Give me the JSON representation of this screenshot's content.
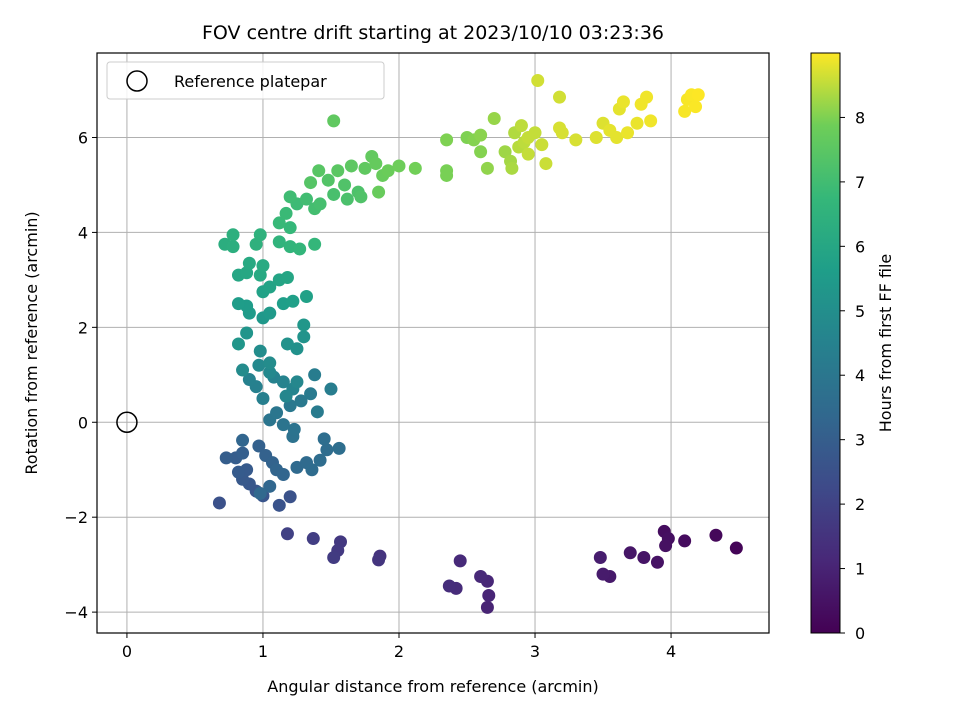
{
  "chart_data": {
    "type": "scatter",
    "title": "FOV centre drift starting at 2023/10/10 03:23:36",
    "xlabel": "Angular distance from reference (arcmin)",
    "ylabel": "Rotation from reference (arcmin)",
    "xlim": [
      -0.22,
      4.72
    ],
    "ylim": [
      -4.44,
      7.78
    ],
    "xticks": [
      "0",
      "1",
      "2",
      "3",
      "4"
    ],
    "xtick_values": [
      0,
      1,
      2,
      3,
      4
    ],
    "yticks": [
      "−4",
      "−2",
      "0",
      "2",
      "4",
      "6"
    ],
    "ytick_values": [
      -4,
      -2,
      0,
      2,
      4,
      6
    ],
    "grid": true,
    "legend": {
      "position": "top-left",
      "entries": [
        "Reference platepar"
      ]
    },
    "reference_point": {
      "x": 0,
      "y": 0
    },
    "colorbar": {
      "label": "Hours from first FF file",
      "colormap": "viridis",
      "range": [
        0,
        9.0
      ],
      "ticks": [
        "0",
        "1",
        "2",
        "3",
        "4",
        "5",
        "6",
        "7",
        "8"
      ],
      "tick_values": [
        0,
        1,
        2,
        3,
        4,
        5,
        6,
        7,
        8
      ]
    },
    "points": [
      {
        "x": 4.48,
        "y": -2.65,
        "h": 0.1
      },
      {
        "x": 4.33,
        "y": -2.38,
        "h": 0.2
      },
      {
        "x": 4.1,
        "y": -2.5,
        "h": 0.3
      },
      {
        "x": 3.95,
        "y": -2.3,
        "h": 0.35
      },
      {
        "x": 3.98,
        "y": -2.45,
        "h": 0.4
      },
      {
        "x": 3.96,
        "y": -2.6,
        "h": 0.45
      },
      {
        "x": 3.9,
        "y": -2.95,
        "h": 0.5
      },
      {
        "x": 3.8,
        "y": -2.85,
        "h": 0.55
      },
      {
        "x": 3.7,
        "y": -2.75,
        "h": 0.6
      },
      {
        "x": 3.55,
        "y": -3.25,
        "h": 0.7
      },
      {
        "x": 3.5,
        "y": -3.2,
        "h": 0.75
      },
      {
        "x": 3.48,
        "y": -2.85,
        "h": 0.8
      },
      {
        "x": 2.65,
        "y": -3.9,
        "h": 1.0
      },
      {
        "x": 2.66,
        "y": -3.65,
        "h": 1.05
      },
      {
        "x": 2.65,
        "y": -3.35,
        "h": 1.1
      },
      {
        "x": 2.6,
        "y": -3.25,
        "h": 1.15
      },
      {
        "x": 2.45,
        "y": -2.92,
        "h": 1.2
      },
      {
        "x": 2.42,
        "y": -3.5,
        "h": 1.25
      },
      {
        "x": 2.37,
        "y": -3.45,
        "h": 1.3
      },
      {
        "x": 1.86,
        "y": -2.82,
        "h": 1.5
      },
      {
        "x": 1.85,
        "y": -2.9,
        "h": 1.55
      },
      {
        "x": 1.57,
        "y": -2.52,
        "h": 1.65
      },
      {
        "x": 1.55,
        "y": -2.7,
        "h": 1.7
      },
      {
        "x": 1.52,
        "y": -2.85,
        "h": 1.75
      },
      {
        "x": 1.37,
        "y": -2.45,
        "h": 1.85
      },
      {
        "x": 1.18,
        "y": -2.35,
        "h": 1.95
      },
      {
        "x": 0.68,
        "y": -1.7,
        "h": 2.5
      },
      {
        "x": 1.2,
        "y": -1.57,
        "h": 2.55
      },
      {
        "x": 1.12,
        "y": -1.75,
        "h": 2.6
      },
      {
        "x": 1.0,
        "y": -1.55,
        "h": 2.65
      },
      {
        "x": 0.95,
        "y": -1.45,
        "h": 2.7
      },
      {
        "x": 0.9,
        "y": -1.3,
        "h": 2.75
      },
      {
        "x": 0.85,
        "y": -1.2,
        "h": 2.8
      },
      {
        "x": 0.88,
        "y": -1.0,
        "h": 2.85
      },
      {
        "x": 0.82,
        "y": -1.05,
        "h": 2.9
      },
      {
        "x": 0.8,
        "y": -0.75,
        "h": 2.95
      },
      {
        "x": 0.73,
        "y": -0.75,
        "h": 3.0
      },
      {
        "x": 0.85,
        "y": -0.65,
        "h": 3.05
      },
      {
        "x": 0.97,
        "y": -0.5,
        "h": 3.1
      },
      {
        "x": 1.02,
        "y": -0.7,
        "h": 3.15
      },
      {
        "x": 1.07,
        "y": -0.85,
        "h": 3.2
      },
      {
        "x": 1.1,
        "y": -1.0,
        "h": 3.25
      },
      {
        "x": 1.15,
        "y": -1.1,
        "h": 3.3
      },
      {
        "x": 1.05,
        "y": -1.35,
        "h": 3.35
      },
      {
        "x": 0.98,
        "y": -1.5,
        "h": 3.4
      },
      {
        "x": 1.25,
        "y": -0.95,
        "h": 3.45
      },
      {
        "x": 1.32,
        "y": -0.85,
        "h": 3.5
      },
      {
        "x": 1.36,
        "y": -1.0,
        "h": 3.55
      },
      {
        "x": 1.42,
        "y": -0.8,
        "h": 3.6
      },
      {
        "x": 1.45,
        "y": -0.35,
        "h": 3.65
      },
      {
        "x": 1.56,
        "y": -0.55,
        "h": 3.65
      },
      {
        "x": 0.85,
        "y": -0.38,
        "h": 3.3
      },
      {
        "x": 1.47,
        "y": -0.58,
        "h": 3.6
      },
      {
        "x": 1.22,
        "y": -0.3,
        "h": 3.8
      },
      {
        "x": 1.23,
        "y": -0.15,
        "h": 3.85
      },
      {
        "x": 1.15,
        "y": -0.05,
        "h": 3.9
      },
      {
        "x": 1.05,
        "y": 0.05,
        "h": 3.95
      },
      {
        "x": 1.1,
        "y": 0.2,
        "h": 4.0
      },
      {
        "x": 1.2,
        "y": 0.35,
        "h": 4.05
      },
      {
        "x": 1.28,
        "y": 0.45,
        "h": 4.1
      },
      {
        "x": 1.35,
        "y": 0.6,
        "h": 4.15
      },
      {
        "x": 1.4,
        "y": 0.22,
        "h": 4.2
      },
      {
        "x": 1.38,
        "y": 1.0,
        "h": 4.25
      },
      {
        "x": 1.5,
        "y": 0.7,
        "h": 4.3
      },
      {
        "x": 1.0,
        "y": 0.5,
        "h": 4.35
      },
      {
        "x": 0.95,
        "y": 0.75,
        "h": 4.4
      },
      {
        "x": 0.9,
        "y": 0.9,
        "h": 4.45
      },
      {
        "x": 1.08,
        "y": 0.95,
        "h": 4.5
      },
      {
        "x": 1.15,
        "y": 0.85,
        "h": 4.55
      },
      {
        "x": 1.22,
        "y": 0.7,
        "h": 4.6
      },
      {
        "x": 1.17,
        "y": 0.55,
        "h": 4.65
      },
      {
        "x": 1.25,
        "y": 0.85,
        "h": 4.7
      },
      {
        "x": 1.05,
        "y": 1.05,
        "h": 4.75
      },
      {
        "x": 0.97,
        "y": 1.2,
        "h": 4.8
      },
      {
        "x": 0.85,
        "y": 1.1,
        "h": 4.85
      },
      {
        "x": 1.05,
        "y": 1.25,
        "h": 4.9
      },
      {
        "x": 0.98,
        "y": 1.5,
        "h": 4.95
      },
      {
        "x": 1.25,
        "y": 1.55,
        "h": 5.1
      },
      {
        "x": 1.18,
        "y": 1.65,
        "h": 5.15
      },
      {
        "x": 1.3,
        "y": 1.8,
        "h": 5.2
      },
      {
        "x": 0.88,
        "y": 1.88,
        "h": 5.25
      },
      {
        "x": 0.82,
        "y": 1.65,
        "h": 5.3
      },
      {
        "x": 1.3,
        "y": 2.05,
        "h": 5.35
      },
      {
        "x": 1.0,
        "y": 2.2,
        "h": 5.4
      },
      {
        "x": 1.05,
        "y": 2.3,
        "h": 5.45
      },
      {
        "x": 0.9,
        "y": 2.3,
        "h": 5.5
      },
      {
        "x": 0.88,
        "y": 2.45,
        "h": 5.55
      },
      {
        "x": 0.82,
        "y": 2.5,
        "h": 5.6
      },
      {
        "x": 1.15,
        "y": 2.5,
        "h": 5.65
      },
      {
        "x": 1.22,
        "y": 2.55,
        "h": 5.7
      },
      {
        "x": 1.32,
        "y": 2.65,
        "h": 5.75
      },
      {
        "x": 1.0,
        "y": 2.75,
        "h": 5.8
      },
      {
        "x": 1.05,
        "y": 2.85,
        "h": 5.85
      },
      {
        "x": 1.12,
        "y": 3.0,
        "h": 5.9
      },
      {
        "x": 1.18,
        "y": 3.05,
        "h": 5.95
      },
      {
        "x": 0.82,
        "y": 3.1,
        "h": 6.0
      },
      {
        "x": 0.88,
        "y": 3.15,
        "h": 6.05
      },
      {
        "x": 0.9,
        "y": 3.35,
        "h": 6.1
      },
      {
        "x": 1.0,
        "y": 3.3,
        "h": 6.15
      },
      {
        "x": 0.98,
        "y": 3.1,
        "h": 6.1
      },
      {
        "x": 0.72,
        "y": 3.75,
        "h": 6.3
      },
      {
        "x": 0.78,
        "y": 3.7,
        "h": 6.35
      },
      {
        "x": 0.78,
        "y": 3.95,
        "h": 6.4
      },
      {
        "x": 0.95,
        "y": 3.75,
        "h": 6.45
      },
      {
        "x": 0.98,
        "y": 3.95,
        "h": 6.5
      },
      {
        "x": 1.12,
        "y": 3.8,
        "h": 6.55
      },
      {
        "x": 1.2,
        "y": 3.7,
        "h": 6.6
      },
      {
        "x": 1.27,
        "y": 3.65,
        "h": 6.65
      },
      {
        "x": 1.38,
        "y": 3.75,
        "h": 6.7
      },
      {
        "x": 1.2,
        "y": 4.1,
        "h": 6.75
      },
      {
        "x": 1.12,
        "y": 4.2,
        "h": 6.8
      },
      {
        "x": 1.17,
        "y": 4.4,
        "h": 6.85
      },
      {
        "x": 1.25,
        "y": 4.6,
        "h": 6.9
      },
      {
        "x": 1.2,
        "y": 4.75,
        "h": 6.95
      },
      {
        "x": 1.32,
        "y": 4.7,
        "h": 7.0
      },
      {
        "x": 1.38,
        "y": 4.5,
        "h": 7.05
      },
      {
        "x": 1.42,
        "y": 4.6,
        "h": 7.1
      },
      {
        "x": 1.52,
        "y": 4.8,
        "h": 7.15
      },
      {
        "x": 1.62,
        "y": 4.7,
        "h": 7.2
      },
      {
        "x": 1.7,
        "y": 4.85,
        "h": 7.25
      },
      {
        "x": 1.6,
        "y": 5.0,
        "h": 7.3
      },
      {
        "x": 1.48,
        "y": 5.1,
        "h": 7.35
      },
      {
        "x": 1.35,
        "y": 5.05,
        "h": 7.4
      },
      {
        "x": 1.41,
        "y": 5.3,
        "h": 7.45
      },
      {
        "x": 1.55,
        "y": 5.3,
        "h": 7.5
      },
      {
        "x": 1.65,
        "y": 5.4,
        "h": 7.55
      },
      {
        "x": 1.75,
        "y": 5.35,
        "h": 7.6
      },
      {
        "x": 1.8,
        "y": 5.6,
        "h": 7.65
      },
      {
        "x": 1.83,
        "y": 5.45,
        "h": 7.7
      },
      {
        "x": 1.88,
        "y": 5.2,
        "h": 7.75
      },
      {
        "x": 1.92,
        "y": 5.3,
        "h": 7.8
      },
      {
        "x": 2.0,
        "y": 5.4,
        "h": 7.85
      },
      {
        "x": 1.85,
        "y": 4.85,
        "h": 7.75
      },
      {
        "x": 1.52,
        "y": 6.35,
        "h": 7.6
      },
      {
        "x": 2.12,
        "y": 5.35,
        "h": 7.9
      },
      {
        "x": 2.35,
        "y": 5.2,
        "h": 7.95
      },
      {
        "x": 2.35,
        "y": 5.3,
        "h": 7.95
      },
      {
        "x": 1.72,
        "y": 4.75,
        "h": 7.3
      },
      {
        "x": 2.5,
        "y": 6.0,
        "h": 8.0
      },
      {
        "x": 2.6,
        "y": 5.7,
        "h": 8.05
      },
      {
        "x": 2.6,
        "y": 6.05,
        "h": 8.1
      },
      {
        "x": 2.65,
        "y": 5.35,
        "h": 8.15
      },
      {
        "x": 2.7,
        "y": 6.4,
        "h": 8.2
      },
      {
        "x": 2.78,
        "y": 5.7,
        "h": 8.25
      },
      {
        "x": 2.82,
        "y": 5.5,
        "h": 8.3
      },
      {
        "x": 2.83,
        "y": 5.35,
        "h": 8.35
      },
      {
        "x": 2.85,
        "y": 6.1,
        "h": 8.4
      },
      {
        "x": 2.88,
        "y": 5.8,
        "h": 8.45
      },
      {
        "x": 2.9,
        "y": 6.25,
        "h": 8.5
      },
      {
        "x": 2.92,
        "y": 5.9,
        "h": 8.5
      },
      {
        "x": 2.95,
        "y": 5.65,
        "h": 8.55
      },
      {
        "x": 3.0,
        "y": 6.1,
        "h": 8.55
      },
      {
        "x": 3.05,
        "y": 5.85,
        "h": 8.6
      },
      {
        "x": 3.08,
        "y": 5.45,
        "h": 8.6
      },
      {
        "x": 3.02,
        "y": 7.2,
        "h": 8.65
      },
      {
        "x": 3.18,
        "y": 6.85,
        "h": 8.65
      },
      {
        "x": 3.18,
        "y": 6.2,
        "h": 8.7
      },
      {
        "x": 3.3,
        "y": 5.95,
        "h": 8.7
      },
      {
        "x": 3.45,
        "y": 6.0,
        "h": 8.75
      },
      {
        "x": 3.5,
        "y": 6.3,
        "h": 8.75
      },
      {
        "x": 3.55,
        "y": 6.15,
        "h": 8.8
      },
      {
        "x": 3.6,
        "y": 6.0,
        "h": 8.8
      },
      {
        "x": 3.62,
        "y": 6.6,
        "h": 8.8
      },
      {
        "x": 3.65,
        "y": 6.75,
        "h": 8.85
      },
      {
        "x": 3.68,
        "y": 6.1,
        "h": 8.85
      },
      {
        "x": 3.75,
        "y": 6.3,
        "h": 8.85
      },
      {
        "x": 3.78,
        "y": 6.7,
        "h": 8.9
      },
      {
        "x": 3.82,
        "y": 6.85,
        "h": 8.9
      },
      {
        "x": 3.85,
        "y": 6.35,
        "h": 8.9
      },
      {
        "x": 4.1,
        "y": 6.55,
        "h": 8.95
      },
      {
        "x": 4.12,
        "y": 6.8,
        "h": 8.95
      },
      {
        "x": 4.15,
        "y": 6.9,
        "h": 8.98
      },
      {
        "x": 4.18,
        "y": 6.65,
        "h": 8.98
      },
      {
        "x": 4.2,
        "y": 6.9,
        "h": 9.0
      },
      {
        "x": 2.35,
        "y": 5.95,
        "h": 8.0
      },
      {
        "x": 2.55,
        "y": 5.95,
        "h": 8.05
      },
      {
        "x": 3.2,
        "y": 6.1,
        "h": 8.7
      },
      {
        "x": 2.95,
        "y": 6.0,
        "h": 8.55
      }
    ]
  }
}
